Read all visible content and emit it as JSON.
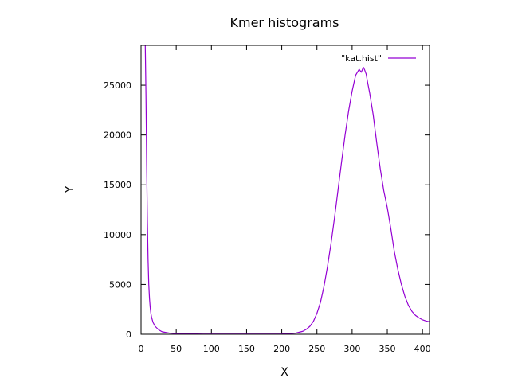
{
  "chart_data": {
    "type": "line",
    "title": "Kmer histograms",
    "xlabel": "X",
    "ylabel": "Y",
    "xlim": [
      0,
      410
    ],
    "ylim": [
      0,
      29000
    ],
    "x_ticks": [
      0,
      50,
      100,
      150,
      200,
      250,
      300,
      350,
      400
    ],
    "y_ticks": [
      0,
      5000,
      10000,
      15000,
      20000,
      25000
    ],
    "grid": false,
    "legend_position": "top-right",
    "series": [
      {
        "name": "\"kat.hist\"",
        "color": "#9400d3",
        "x": [
          6,
          7,
          8,
          9,
          10,
          11,
          12,
          13,
          14,
          15,
          17,
          20,
          25,
          30,
          40,
          50,
          60,
          80,
          100,
          120,
          150,
          180,
          200,
          210,
          220,
          230,
          235,
          240,
          245,
          250,
          255,
          260,
          265,
          270,
          275,
          280,
          285,
          290,
          295,
          300,
          305,
          310,
          313,
          316,
          318,
          320,
          322,
          325,
          330,
          335,
          340,
          345,
          350,
          355,
          360,
          365,
          370,
          375,
          380,
          385,
          390,
          395,
          400,
          405,
          410
        ],
        "y": [
          29000,
          24000,
          17000,
          11500,
          7500,
          5000,
          3600,
          2700,
          2100,
          1700,
          1200,
          800,
          450,
          250,
          120,
          70,
          50,
          30,
          20,
          20,
          20,
          20,
          30,
          60,
          120,
          300,
          500,
          800,
          1300,
          2100,
          3200,
          4800,
          6800,
          9100,
          11700,
          14500,
          17300,
          20000,
          22400,
          24400,
          26000,
          26600,
          26300,
          26800,
          26500,
          26100,
          25300,
          24200,
          22000,
          19200,
          16600,
          14400,
          12700,
          10600,
          8300,
          6500,
          5000,
          3800,
          2900,
          2300,
          1900,
          1650,
          1450,
          1330,
          1250
        ]
      }
    ]
  }
}
